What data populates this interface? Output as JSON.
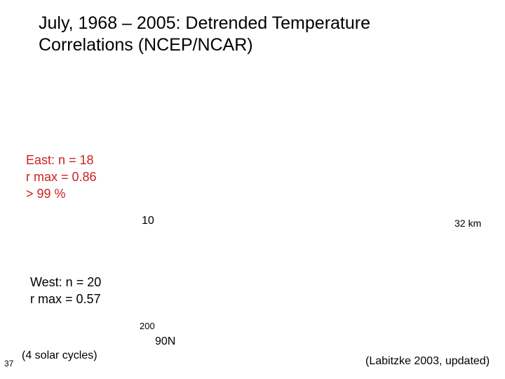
{
  "title": {
    "line1": "July, 1968 – 2005: Detrended Temperature",
    "line2": "Correlations (NCEP/NCAR)"
  },
  "east": {
    "line1": "East: n = 18",
    "line2": "r max = 0.86",
    "line3": "> 99 %",
    "color": "#cc2222"
  },
  "west": {
    "line1": "West: n = 20",
    "line2": "r max = 0.57"
  },
  "labels": {
    "pressure_top": "10",
    "height_top": "32 km",
    "pressure_bottom": "200",
    "latitude": "90N",
    "cycles": "(4 solar cycles)",
    "slide_number": "37",
    "source": "(Labitzke  2003, updated)"
  }
}
